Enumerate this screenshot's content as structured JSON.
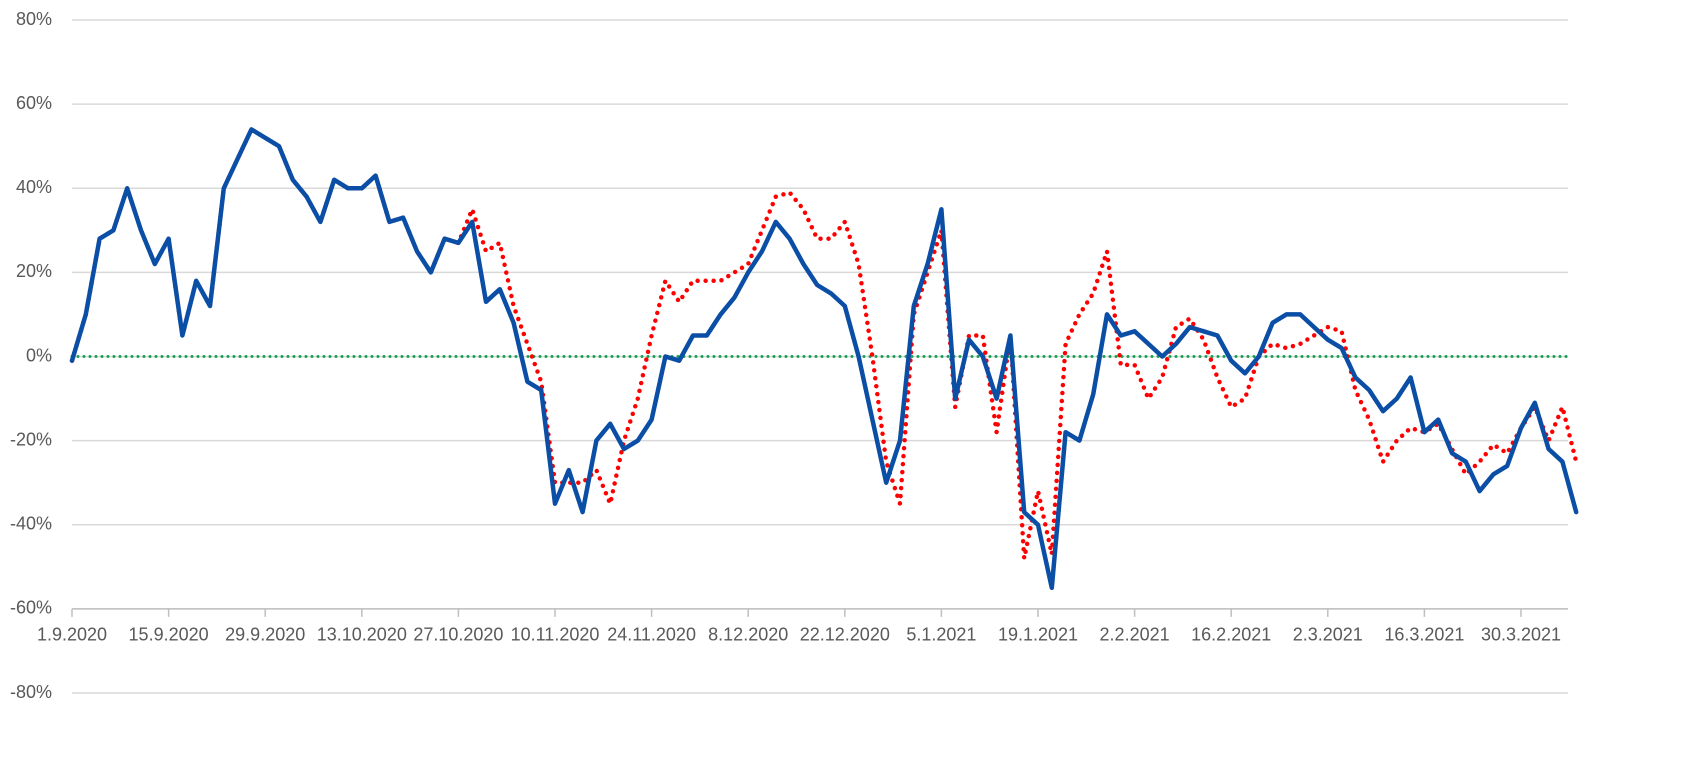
{
  "chart_data": {
    "type": "line",
    "categories": [
      "1.9.2020",
      null,
      null,
      null,
      null,
      null,
      null,
      "15.9.2020",
      null,
      null,
      null,
      null,
      null,
      null,
      "29.9.2020",
      null,
      null,
      null,
      null,
      null,
      null,
      "13.10.2020",
      null,
      null,
      null,
      null,
      null,
      null,
      "27.10.2020",
      null,
      null,
      null,
      null,
      null,
      null,
      "10.11.2020",
      null,
      null,
      null,
      null,
      null,
      null,
      "24.11.2020",
      null,
      null,
      null,
      null,
      null,
      null,
      "8.12.2020",
      null,
      null,
      null,
      null,
      null,
      null,
      "22.12.2020",
      null,
      null,
      null,
      null,
      null,
      null,
      "5.1.2021",
      null,
      null,
      null,
      null,
      null,
      null,
      "19.1.2021",
      null,
      null,
      null,
      null,
      null,
      null,
      "2.2.2021",
      null,
      null,
      null,
      null,
      null,
      null,
      "16.2.2021",
      null,
      null,
      null,
      null,
      null,
      null,
      "2.3.2021",
      null,
      null,
      null,
      null,
      null,
      null,
      "16.3.2021",
      null,
      null,
      null,
      null,
      null,
      null,
      "30.3.2021",
      null,
      null,
      null,
      null
    ],
    "series": [
      {
        "color": "#0b4ea6",
        "style": "solid",
        "values": [
          -1,
          10,
          28,
          30,
          40,
          30,
          22,
          28,
          5,
          18,
          12,
          40,
          47,
          54,
          52,
          50,
          42,
          38,
          32,
          42,
          40,
          40,
          43,
          32,
          33,
          25,
          20,
          28,
          27,
          32,
          13,
          16,
          8,
          -6,
          -8,
          -35,
          -27,
          -37,
          -20,
          -16,
          -22,
          -20,
          -15,
          0,
          -1,
          5,
          5,
          10,
          14,
          20,
          25,
          32,
          28,
          22,
          17,
          15,
          12,
          0,
          -15,
          -30,
          -20,
          12,
          22,
          35,
          -10,
          4,
          0,
          -10,
          5,
          -37,
          -40,
          -55,
          -18,
          -20,
          -9,
          10,
          5,
          6,
          3,
          0,
          3,
          7,
          6,
          5,
          -1,
          -4,
          0,
          8,
          10,
          10,
          7,
          4,
          2,
          -5,
          -8,
          -13,
          -10,
          -5,
          -18,
          -15,
          -23,
          -25,
          -32,
          -28,
          -26,
          -17,
          -11,
          -22,
          -25,
          -37
        ]
      },
      {
        "color": "#ff0000",
        "style": "dotted",
        "values": [
          -1,
          10,
          28,
          30,
          40,
          30,
          22,
          28,
          5,
          18,
          12,
          40,
          47,
          54,
          52,
          50,
          42,
          38,
          32,
          42,
          40,
          40,
          43,
          32,
          33,
          25,
          20,
          28,
          27,
          35,
          25,
          27,
          12,
          3,
          -6,
          -30,
          -30,
          -30,
          -27,
          -35,
          -20,
          -10,
          5,
          18,
          13,
          18,
          18,
          18,
          20,
          22,
          30,
          38,
          39,
          35,
          28,
          28,
          32,
          22,
          0,
          -25,
          -35,
          10,
          20,
          30,
          -12,
          5,
          5,
          -18,
          5,
          -48,
          -32,
          -47,
          3,
          10,
          15,
          25,
          -2,
          -2,
          -10,
          -5,
          7,
          9,
          4,
          -5,
          -12,
          -10,
          0,
          3,
          2,
          3,
          5,
          7,
          6,
          -8,
          -15,
          -25,
          -20,
          -17,
          -18,
          -16,
          -22,
          -28,
          -25,
          -21,
          -23,
          -17,
          -12,
          -20,
          -12,
          -25
        ]
      }
    ],
    "ylim": [
      -80,
      80
    ],
    "yticks": [
      {
        "value": -80,
        "label": "-80%"
      },
      {
        "value": -60,
        "label": "-60%"
      },
      {
        "value": -40,
        "label": "-40%"
      },
      {
        "value": -20,
        "label": "-20%"
      },
      {
        "value": 0,
        "label": "0%"
      },
      {
        "value": 20,
        "label": "20%"
      },
      {
        "value": 40,
        "label": "40%"
      },
      {
        "value": 60,
        "label": "60%"
      },
      {
        "value": 80,
        "label": "80%"
      }
    ],
    "x_axis_crosses": -60,
    "reference_line": {
      "value": 0,
      "color": "#1a9f55"
    },
    "grid": true
  }
}
